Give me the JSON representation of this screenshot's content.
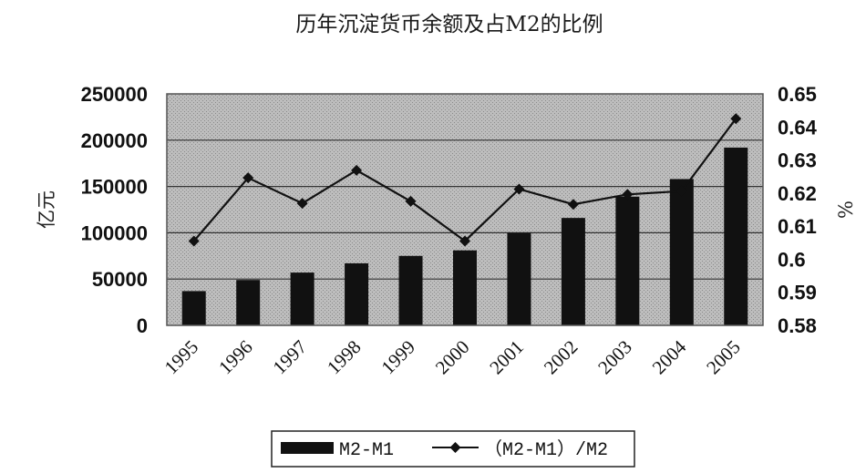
{
  "chart_data": {
    "type": "bar",
    "title": "历年沉淀货币余额及占M2的比例",
    "categories": [
      "1995",
      "1996",
      "1997",
      "1998",
      "1999",
      "2000",
      "2001",
      "2002",
      "2003",
      "2004",
      "2005"
    ],
    "ylabel": "亿元",
    "y2label": "%",
    "ylim": [
      0,
      250000
    ],
    "y2lim": [
      0.58,
      0.65
    ],
    "yticks": [
      "0",
      "50000",
      "100000",
      "150000",
      "200000",
      "250000"
    ],
    "y2ticks": [
      "0.58",
      "0.59",
      "0.6",
      "0.61",
      "0.62",
      "0.63",
      "0.64",
      "0.65"
    ],
    "grid": true,
    "legend_position": "bottom",
    "series": [
      {
        "name": "M2-M1",
        "type": "bar",
        "axis": "left",
        "color": "#111111",
        "values": [
          37000,
          49000,
          57000,
          67000,
          75000,
          81000,
          100000,
          116000,
          139000,
          158000,
          192000
        ]
      },
      {
        "name": "（M2-M1）/M2",
        "type": "line",
        "axis": "right",
        "marker": "diamond",
        "color": "#111111",
        "values": [
          0.6055,
          0.6246,
          0.6169,
          0.6269,
          0.6175,
          0.6055,
          0.6212,
          0.6166,
          0.6196,
          0.6206,
          0.6425
        ]
      }
    ]
  }
}
